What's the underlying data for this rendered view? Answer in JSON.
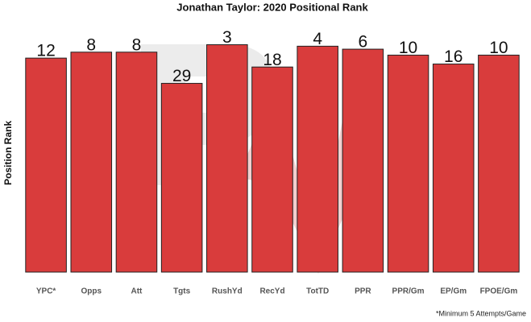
{
  "chart_data": {
    "type": "bar",
    "title": "Jonathan Taylor: 2020 Positional Rank",
    "y_label": "Position Rank",
    "footnote": "*Minimum 5 Attempts/Game",
    "categories": [
      "YPC*",
      "Opps",
      "Att",
      "Tgts",
      "RushYd",
      "RecYd",
      "TotTD",
      "PPR",
      "PPR/Gm",
      "EP/Gm",
      "FPOE/Gm"
    ],
    "values": [
      12,
      8,
      8,
      29,
      3,
      18,
      4,
      6,
      10,
      16,
      10
    ],
    "color": "#d93c3c",
    "ylim": [
      156,
      0
    ]
  }
}
